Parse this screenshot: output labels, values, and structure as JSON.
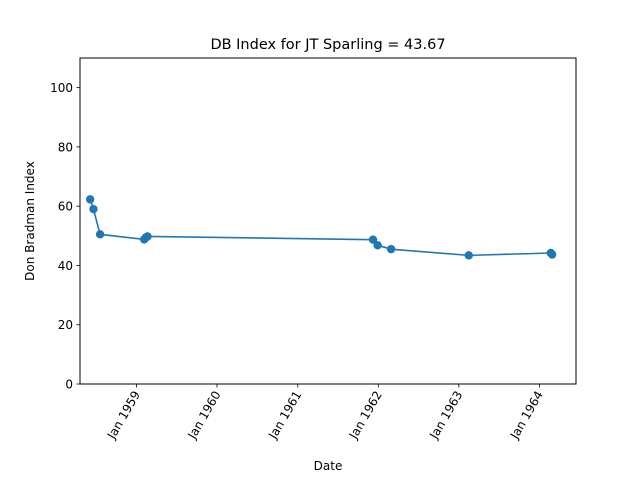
{
  "chart_data": {
    "type": "line",
    "title": "DB Index for JT Sparling = 43.67",
    "xlabel": "Date",
    "ylabel": "Don Bradman Index",
    "xlim": [
      "1958-04-20",
      "1964-06-15"
    ],
    "ylim": [
      0,
      110
    ],
    "x_ticks": [
      {
        "value": "1959-01-01",
        "label": "Jan 1959"
      },
      {
        "value": "1960-01-01",
        "label": "Jan 1960"
      },
      {
        "value": "1961-01-01",
        "label": "Jan 1961"
      },
      {
        "value": "1962-01-01",
        "label": "Jan 1962"
      },
      {
        "value": "1963-01-01",
        "label": "Jan 1963"
      },
      {
        "value": "1964-01-01",
        "label": "Jan 1964"
      }
    ],
    "y_ticks": [
      0,
      20,
      40,
      60,
      80,
      100
    ],
    "grid": false,
    "line_color": "#1f77b4",
    "series": [
      {
        "x": [
          "1958-06-05",
          "1958-06-20",
          "1958-07-20",
          "1959-02-05",
          "1959-02-12",
          "1959-02-20",
          "1961-12-08",
          "1961-12-29",
          "1962-02-28",
          "1963-02-15",
          "1964-02-22",
          "1964-02-28"
        ],
        "values": [
          62.3,
          59.0,
          50.5,
          48.8,
          49.4,
          49.8,
          48.7,
          46.8,
          45.5,
          43.4,
          44.2,
          43.67
        ]
      }
    ]
  }
}
